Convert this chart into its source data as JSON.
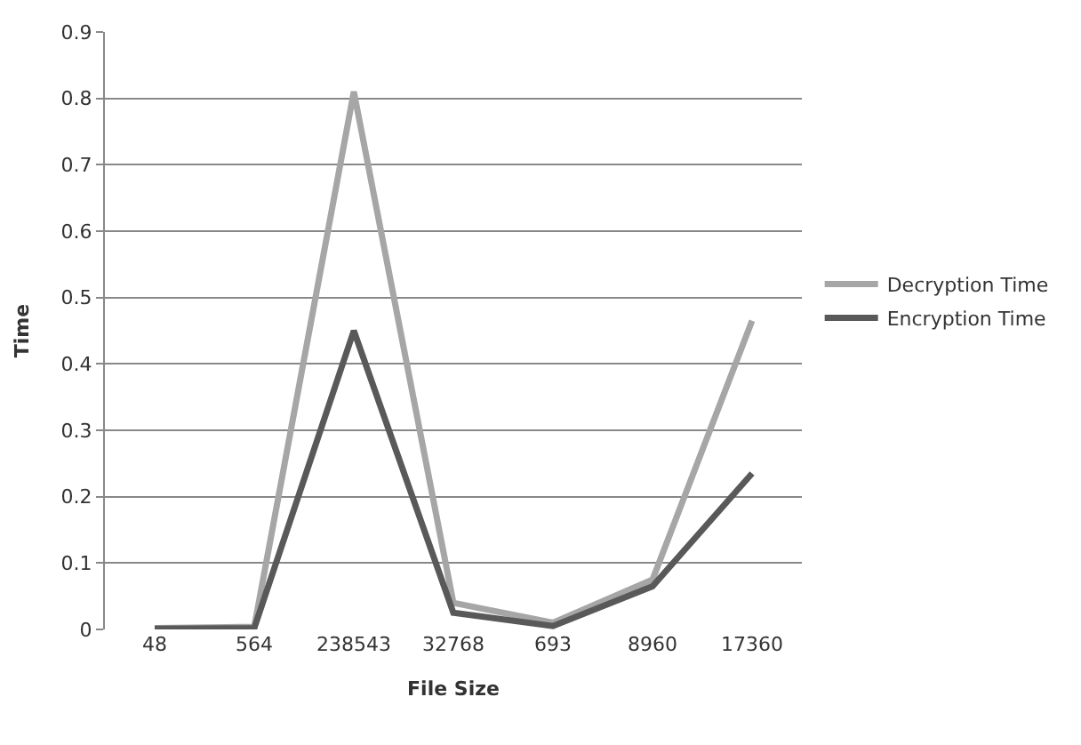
{
  "chart_data": {
    "type": "line",
    "xlabel": "File Size",
    "ylabel": "Time",
    "categories": [
      "48",
      "564",
      "238543",
      "32768",
      "693",
      "8960",
      "17360"
    ],
    "series": [
      {
        "name": "Decryption Time",
        "color": "#a6a6a6",
        "values": [
          0.002,
          0.004,
          0.81,
          0.04,
          0.01,
          0.075,
          0.465
        ]
      },
      {
        "name": "Encryption Time",
        "color": "#595959",
        "values": [
          0.001,
          0.002,
          0.45,
          0.025,
          0.005,
          0.065,
          0.235
        ]
      }
    ],
    "ylim": [
      0,
      0.9
    ],
    "yticks": [
      0,
      0.1,
      0.2,
      0.3,
      0.4,
      0.5,
      0.6,
      0.7,
      0.8,
      0.9
    ],
    "grid": "y",
    "legend": "right",
    "marker": "none",
    "line_style": "solid"
  }
}
